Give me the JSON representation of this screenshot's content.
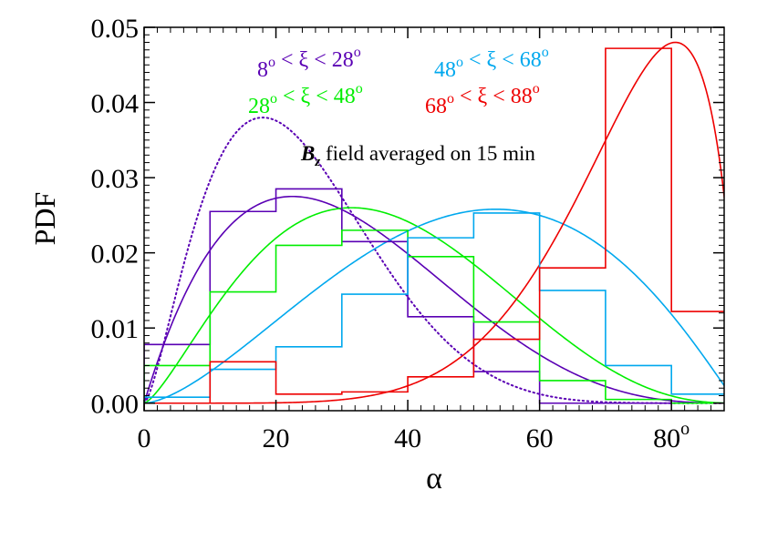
{
  "chart_data": {
    "type": "histogram",
    "xlabel": "α",
    "ylabel": "PDF",
    "xlim": [
      0,
      88
    ],
    "ylim": [
      -0.001,
      0.05
    ],
    "xticks": [
      {
        "value": 0,
        "label": "0"
      },
      {
        "value": 20,
        "label": "20"
      },
      {
        "value": 40,
        "label": "40"
      },
      {
        "value": 60,
        "label": "60"
      },
      {
        "value": 80,
        "label": "80°"
      }
    ],
    "yticks": [
      {
        "value": 0.0,
        "label": "0.00"
      },
      {
        "value": 0.01,
        "label": "0.01"
      },
      {
        "value": 0.02,
        "label": "0.02"
      },
      {
        "value": 0.03,
        "label": "0.03"
      },
      {
        "value": 0.04,
        "label": "0.04"
      },
      {
        "value": 0.05,
        "label": "0.05"
      }
    ],
    "annotation": {
      "bold": "B",
      "sub": "z",
      "text": " field averaged on 15 min"
    },
    "bin_edges": [
      0,
      10,
      20,
      30,
      40,
      50,
      60,
      70,
      80,
      88
    ],
    "series": [
      {
        "name": "8° < ξ < 28°",
        "color": "#5a00b4",
        "hist": [
          0.0078,
          0.0255,
          0.0285,
          0.0215,
          0.0115,
          0.0042,
          0.0,
          0.0,
          0.0
        ],
        "fit": {
          "dist": "beta",
          "a": 2.0,
          "b": 4.0,
          "peak": 0.0275
        },
        "dotted": {
          "dist": "beta",
          "a": 2.5,
          "b": 7.0,
          "peak": 0.038
        }
      },
      {
        "name": "28° < ξ < 48°",
        "color": "#00ee00",
        "hist": [
          0.005,
          0.0148,
          0.021,
          0.023,
          0.0195,
          0.0108,
          0.003,
          0.0005,
          0.0
        ],
        "fit": {
          "dist": "beta",
          "a": 2.4,
          "b": 3.6,
          "peak": 0.026
        }
      },
      {
        "name": "48° < ξ < 68°",
        "color": "#00a8ee",
        "hist": [
          0.0008,
          0.0045,
          0.0075,
          0.0145,
          0.022,
          0.0253,
          0.015,
          0.005,
          0.0012
        ],
        "fit": {
          "dist": "beta",
          "a": 2.6,
          "b": 2.1,
          "peak": 0.0258
        }
      },
      {
        "name": "68° < ξ < 88°",
        "color": "#ee0000",
        "hist": [
          0.0,
          0.0055,
          0.0012,
          0.0015,
          0.0035,
          0.0085,
          0.018,
          0.0472,
          0.0122
        ],
        "fit": {
          "dist": "beta",
          "a": 7.0,
          "b": 1.7,
          "peak": 0.048
        }
      }
    ]
  }
}
